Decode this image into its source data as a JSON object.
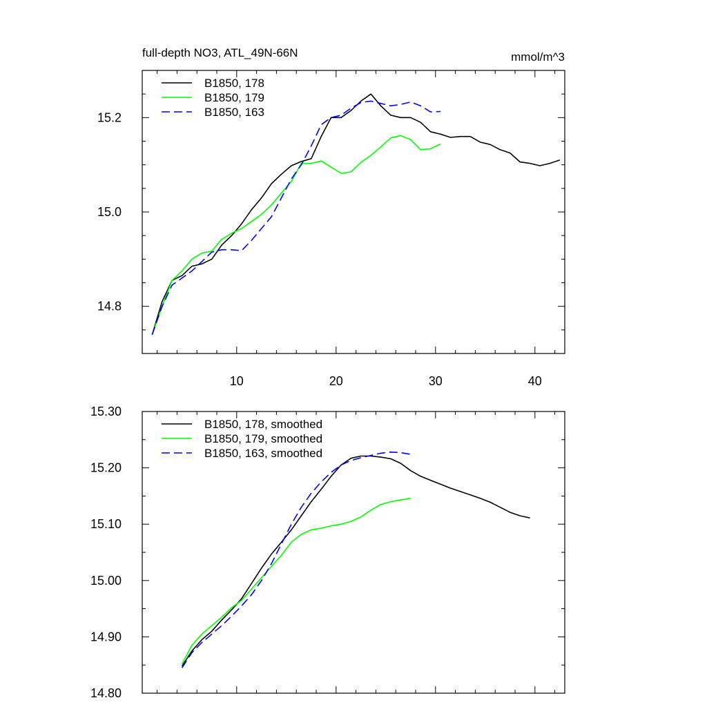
{
  "chart_data": [
    {
      "type": "line",
      "title": "full-depth NO3, ATL_49N-66N",
      "units": "mmol/m^3",
      "xlim": [
        0.5,
        43
      ],
      "ylim": [
        14.7,
        15.3
      ],
      "xticks": [
        10,
        20,
        30,
        40
      ],
      "xtick_labels": [
        "10",
        "20",
        "30",
        "40"
      ],
      "yticks": [
        14.8,
        15.0,
        15.2
      ],
      "ytick_labels": [
        "14.8",
        "15.0",
        "15.2"
      ],
      "legend_position": "top-left",
      "series": [
        {
          "name": "B1850, 178",
          "color": "#000000",
          "dash": "solid",
          "x": [
            1.5,
            2.5,
            3.5,
            4.5,
            5.5,
            6.5,
            7.5,
            8.5,
            9.5,
            10.5,
            11.5,
            12.5,
            13.5,
            14.5,
            15.5,
            16.5,
            17.5,
            18.5,
            19.5,
            20.5,
            21.5,
            22.5,
            23.5,
            24.5,
            25.5,
            26.5,
            27.5,
            28.5,
            29.5,
            30.5,
            31.5,
            32.5,
            33.5,
            34.5,
            35.5,
            36.5,
            37.5,
            38.5,
            39.5,
            40.5,
            41.5,
            42.5
          ],
          "y": [
            14.74,
            14.81,
            14.855,
            14.865,
            14.885,
            14.89,
            14.9,
            14.93,
            14.95,
            14.975,
            15.005,
            15.03,
            15.06,
            15.08,
            15.098,
            15.107,
            15.113,
            15.16,
            15.2,
            15.2,
            15.215,
            15.235,
            15.25,
            15.225,
            15.205,
            15.2,
            15.2,
            15.19,
            15.17,
            15.165,
            15.158,
            15.16,
            15.16,
            15.148,
            15.143,
            15.132,
            15.125,
            15.106,
            15.103,
            15.098,
            15.103,
            15.11
          ]
        },
        {
          "name": "B1850, 179",
          "color": "#00ff00",
          "dash": "solid",
          "x": [
            1.5,
            2.5,
            3.5,
            4.5,
            5.5,
            6.5,
            7.5,
            8.5,
            9.5,
            10.5,
            11.5,
            12.5,
            13.5,
            14.5,
            15.5,
            16.5,
            17.5,
            18.5,
            19.5,
            20.5,
            21.5,
            22.5,
            23.5,
            24.5,
            25.5,
            26.5,
            27.5,
            28.5,
            29.5,
            30.5
          ],
          "y": [
            14.74,
            14.8,
            14.855,
            14.875,
            14.9,
            14.913,
            14.917,
            14.942,
            14.955,
            14.965,
            14.98,
            14.995,
            15.015,
            15.04,
            15.065,
            15.103,
            15.103,
            15.108,
            15.095,
            15.082,
            15.085,
            15.105,
            15.12,
            15.138,
            15.157,
            15.162,
            15.153,
            15.132,
            15.134,
            15.144
          ]
        },
        {
          "name": "B1850, 163",
          "color": "#0000ff",
          "dash": "dashed",
          "x": [
            1.5,
            2.5,
            3.5,
            4.5,
            5.5,
            6.5,
            7.5,
            8.5,
            9.5,
            10.5,
            11.5,
            12.5,
            13.5,
            14.5,
            15.5,
            16.5,
            17.5,
            18.5,
            19.5,
            20.5,
            21.5,
            22.5,
            23.5,
            24.5,
            25.5,
            26.5,
            27.5,
            28.5,
            29.5,
            30.5
          ],
          "y": [
            14.74,
            14.8,
            14.845,
            14.86,
            14.875,
            14.895,
            14.915,
            14.92,
            14.92,
            14.918,
            14.94,
            14.965,
            14.99,
            15.03,
            15.07,
            15.1,
            15.14,
            15.185,
            15.2,
            15.205,
            15.22,
            15.232,
            15.235,
            15.23,
            15.225,
            15.228,
            15.233,
            15.225,
            15.212,
            15.213
          ]
        }
      ]
    },
    {
      "type": "line",
      "title": "",
      "units": "",
      "xlim": [
        0.5,
        43
      ],
      "ylim": [
        14.8,
        15.3
      ],
      "xticks": [
        10,
        20,
        30,
        40
      ],
      "xtick_labels": [],
      "yticks": [
        14.8,
        14.9,
        15.0,
        15.1,
        15.2,
        15.3
      ],
      "ytick_labels": [
        "14.80",
        "14.90",
        "15.00",
        "15.10",
        "15.20",
        "15.30"
      ],
      "legend_position": "top-left",
      "series": [
        {
          "name": "B1850, 178, smoothed",
          "color": "#000000",
          "dash": "solid",
          "x": [
            4.5,
            5.5,
            6.5,
            7.5,
            8.5,
            9.5,
            10.5,
            11.5,
            12.5,
            13.5,
            14.5,
            15.5,
            16.5,
            17.5,
            18.5,
            19.5,
            20.5,
            21.5,
            22.5,
            23.5,
            24.5,
            25.5,
            26.5,
            27.5,
            28.5,
            29.5,
            30.5,
            31.5,
            32.5,
            33.5,
            34.5,
            35.5,
            36.5,
            37.5,
            38.5,
            39.5
          ],
          "y": [
            14.848,
            14.875,
            14.895,
            14.91,
            14.93,
            14.948,
            14.968,
            14.995,
            15.022,
            15.047,
            15.068,
            15.09,
            15.115,
            15.14,
            15.162,
            15.185,
            15.205,
            15.217,
            15.221,
            15.221,
            15.219,
            15.216,
            15.208,
            15.195,
            15.185,
            15.178,
            15.171,
            15.164,
            15.158,
            15.152,
            15.146,
            15.139,
            15.13,
            15.121,
            15.115,
            15.111
          ]
        },
        {
          "name": "B1850, 179, smoothed",
          "color": "#00ff00",
          "dash": "solid",
          "x": [
            4.5,
            5.5,
            6.5,
            7.5,
            8.5,
            9.5,
            10.5,
            11.5,
            12.5,
            13.5,
            14.5,
            15.5,
            16.5,
            17.5,
            18.5,
            19.5,
            20.5,
            21.5,
            22.5,
            23.5,
            24.5,
            25.5,
            26.5,
            27.5
          ],
          "y": [
            14.852,
            14.885,
            14.905,
            14.92,
            14.935,
            14.952,
            14.965,
            14.985,
            15.005,
            15.025,
            15.045,
            15.068,
            15.082,
            15.09,
            15.093,
            15.097,
            15.1,
            15.105,
            15.113,
            15.125,
            15.135,
            15.14,
            15.143,
            15.146
          ]
        },
        {
          "name": "B1850, 163, smoothed",
          "color": "#0000ff",
          "dash": "dashed",
          "x": [
            4.5,
            5.5,
            6.5,
            7.5,
            8.5,
            9.5,
            10.5,
            11.5,
            12.5,
            13.5,
            14.5,
            15.5,
            16.5,
            17.5,
            18.5,
            19.5,
            20.5,
            21.5,
            22.5,
            23.5,
            24.5,
            25.5,
            26.5,
            27.5
          ],
          "y": [
            14.845,
            14.872,
            14.89,
            14.905,
            14.92,
            14.937,
            14.955,
            14.975,
            15.0,
            15.03,
            15.065,
            15.1,
            15.13,
            15.155,
            15.175,
            15.192,
            15.205,
            15.213,
            15.218,
            15.222,
            15.226,
            15.228,
            15.227,
            15.224
          ]
        }
      ]
    }
  ]
}
